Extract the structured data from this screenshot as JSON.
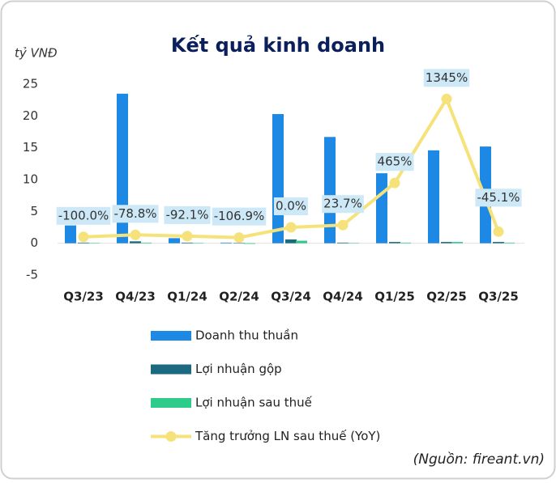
{
  "chart_data": {
    "type": "bar",
    "title": "Kết quả kinh doanh",
    "y_label": "tỷ VNĐ",
    "source": "(Nguồn: fireant.vn)",
    "categories": [
      "Q3/23",
      "Q4/23",
      "Q1/24",
      "Q2/24",
      "Q3/24",
      "Q4/24",
      "Q1/25",
      "Q2/25",
      "Q3/25"
    ],
    "series": [
      {
        "name": "Doanh thu thuần",
        "color": "#1e88e5",
        "values": [
          2.8,
          23.5,
          0.8,
          0.1,
          20.3,
          16.7,
          11.0,
          14.6,
          15.2
        ]
      },
      {
        "name": "Lợi nhuận gộp",
        "color": "#1b6a80",
        "values": [
          0.1,
          0.3,
          0.1,
          0.05,
          0.6,
          0.1,
          0.2,
          0.2,
          0.2
        ]
      },
      {
        "name": "Lợi nhuận sau thuế",
        "color": "#2ecc8a",
        "values": [
          0.05,
          0.1,
          0.05,
          -0.1,
          0.4,
          0.05,
          0.1,
          0.2,
          0.1
        ]
      },
      {
        "name": "Tăng trưởng LN sau thuế (YoY)",
        "color": "#f5e27a",
        "type": "line",
        "axis": "y2",
        "values": [
          -100.0,
          -78.8,
          -92.1,
          -106.9,
          0.0,
          23.7,
          465,
          1345,
          -45.1
        ],
        "value_labels": [
          "-100.0%",
          "-78.8%",
          "-92.1%",
          "-106.9%",
          "0.0%",
          "23.7%",
          "465%",
          "1345%",
          "-45.1%"
        ]
      }
    ],
    "ylim": [
      -5,
      25
    ],
    "yticks": [
      -5,
      0,
      5,
      10,
      15,
      20,
      25
    ],
    "y2lim": [
      -500,
      1500
    ]
  }
}
